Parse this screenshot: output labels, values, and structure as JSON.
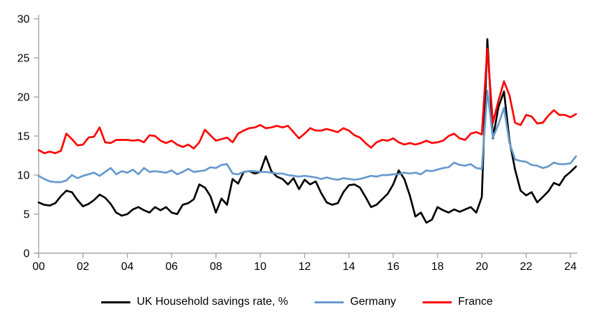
{
  "chart_data": {
    "type": "line",
    "title": "",
    "xlabel": "",
    "ylabel": "",
    "x_unit": "year (quarterly data, 2000Q1–2024Q2)",
    "x_tick_labels": [
      "00",
      "02",
      "04",
      "06",
      "08",
      "10",
      "12",
      "14",
      "16",
      "18",
      "20",
      "22",
      "24"
    ],
    "x_tick_years": [
      0,
      2,
      4,
      6,
      8,
      10,
      12,
      14,
      16,
      18,
      20,
      22,
      24
    ],
    "y_ticks": [
      0,
      5,
      10,
      15,
      20,
      25,
      30
    ],
    "ylim": [
      0,
      30
    ],
    "grid": false,
    "legend_position": "bottom-center",
    "axis_color": "#a6a6a6",
    "tick_label_color": "#000000",
    "series": [
      {
        "name": "UK Household savings rate, %",
        "color": "#000000",
        "values": [
          6.5,
          6.2,
          6.1,
          6.4,
          7.3,
          8.0,
          7.8,
          6.8,
          6.0,
          6.3,
          6.8,
          7.5,
          7.1,
          6.3,
          5.2,
          4.8,
          5.0,
          5.6,
          5.9,
          5.5,
          5.2,
          5.9,
          5.5,
          5.9,
          5.2,
          5.0,
          6.2,
          6.4,
          6.9,
          8.8,
          8.4,
          7.3,
          5.2,
          7.0,
          6.2,
          9.5,
          8.9,
          10.4,
          10.5,
          10.2,
          10.4,
          12.4,
          10.5,
          9.8,
          9.5,
          8.8,
          9.6,
          8.2,
          9.4,
          8.8,
          9.2,
          7.7,
          6.5,
          6.2,
          6.4,
          7.8,
          8.7,
          8.8,
          8.4,
          7.2,
          5.9,
          6.2,
          6.9,
          7.6,
          8.8,
          10.6,
          9.5,
          7.4,
          4.7,
          5.2,
          3.9,
          4.3,
          5.9,
          5.5,
          5.2,
          5.6,
          5.3,
          5.6,
          5.9,
          5.2,
          7.2,
          27.4,
          14.7,
          18.7,
          20.7,
          14.4,
          10.7,
          8.0,
          7.4,
          7.8,
          6.5,
          7.2,
          7.9,
          9.0,
          8.7,
          9.8,
          10.4,
          11.1
        ]
      },
      {
        "name": "Germany",
        "color": "#6699cc",
        "values": [
          9.9,
          9.5,
          9.2,
          9.1,
          9.1,
          9.3,
          10.0,
          9.6,
          9.9,
          10.1,
          10.3,
          9.9,
          10.4,
          10.9,
          10.1,
          10.5,
          10.3,
          10.7,
          10.1,
          10.9,
          10.4,
          10.5,
          10.4,
          10.3,
          10.6,
          10.1,
          10.4,
          10.8,
          10.4,
          10.5,
          10.6,
          11.0,
          10.9,
          11.3,
          11.4,
          10.2,
          10.1,
          10.4,
          10.5,
          10.5,
          10.4,
          10.4,
          10.3,
          10.2,
          10.2,
          10.0,
          9.9,
          9.8,
          9.9,
          9.8,
          9.7,
          9.5,
          9.7,
          9.5,
          9.4,
          9.6,
          9.5,
          9.4,
          9.5,
          9.7,
          9.9,
          9.8,
          10.0,
          10.0,
          10.1,
          10.1,
          10.3,
          10.2,
          10.3,
          10.1,
          10.6,
          10.5,
          10.7,
          10.9,
          11.0,
          11.6,
          11.3,
          11.2,
          11.4,
          10.9,
          10.8,
          20.8,
          14.8,
          16.5,
          18.6,
          14.1,
          12.0,
          11.8,
          11.7,
          11.3,
          11.2,
          10.9,
          11.1,
          11.6,
          11.4,
          11.4,
          11.5,
          12.4
        ]
      },
      {
        "name": "France",
        "color": "#ff0000",
        "values": [
          13.2,
          12.8,
          13.0,
          12.8,
          13.1,
          15.3,
          14.6,
          13.8,
          13.9,
          14.8,
          14.9,
          16.1,
          14.2,
          14.1,
          14.5,
          14.5,
          14.5,
          14.4,
          14.5,
          14.2,
          15.1,
          15.0,
          14.4,
          14.1,
          14.4,
          13.9,
          13.6,
          13.9,
          13.4,
          14.2,
          15.8,
          15.1,
          14.4,
          14.6,
          14.8,
          14.2,
          15.3,
          15.7,
          16.0,
          16.1,
          16.4,
          16.0,
          16.1,
          16.3,
          16.1,
          16.3,
          15.5,
          14.7,
          15.3,
          16.0,
          15.7,
          15.7,
          15.9,
          15.7,
          15.5,
          16.0,
          15.7,
          15.1,
          14.8,
          14.1,
          13.5,
          14.2,
          14.5,
          14.4,
          14.7,
          14.2,
          13.9,
          14.1,
          13.9,
          14.1,
          14.4,
          14.1,
          14.2,
          14.4,
          15.0,
          15.3,
          14.7,
          14.5,
          15.3,
          15.5,
          15.2,
          26.2,
          16.7,
          19.5,
          22.0,
          20.2,
          16.7,
          16.4,
          17.7,
          17.5,
          16.6,
          16.7,
          17.6,
          18.3,
          17.7,
          17.7,
          17.4,
          17.8
        ]
      }
    ]
  },
  "legend": {
    "items": [
      {
        "label": "UK Household savings rate, %"
      },
      {
        "label": "Germany"
      },
      {
        "label": "France"
      }
    ]
  }
}
